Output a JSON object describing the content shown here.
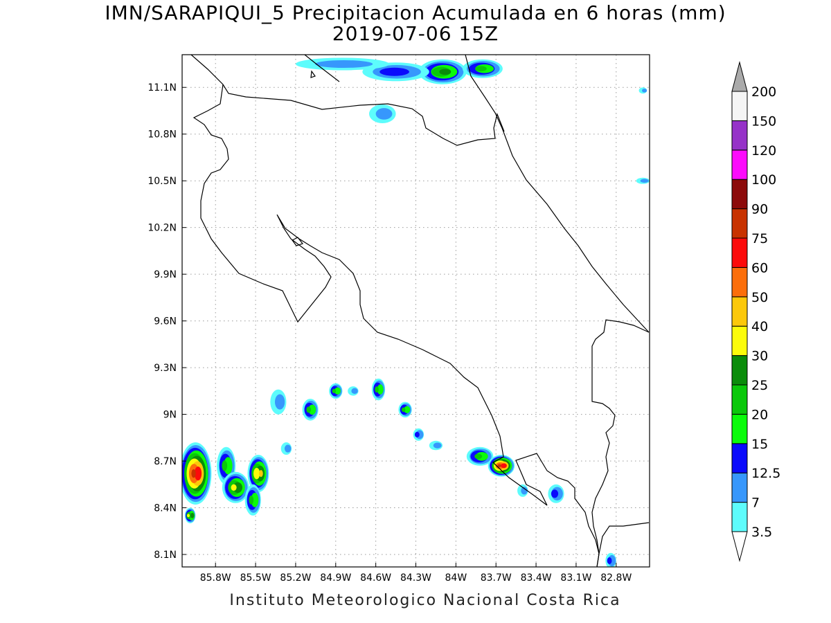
{
  "title": {
    "line1": "IMN/SARAPIQUI_5 Precipitacion Acumulada en 6 horas (mm)",
    "line2": "2019-07-06 15Z"
  },
  "credit": "Instituto Meteorologico Nacional Costa Rica",
  "map": {
    "lon_range": [
      -86.05,
      -82.55
    ],
    "lat_range": [
      8.02,
      11.31
    ],
    "lon_ticks": [
      {
        "value": -85.8,
        "label": "85.8W"
      },
      {
        "value": -85.5,
        "label": "85.5W"
      },
      {
        "value": -85.2,
        "label": "85.2W"
      },
      {
        "value": -84.9,
        "label": "84.9W"
      },
      {
        "value": -84.6,
        "label": "84.6W"
      },
      {
        "value": -84.3,
        "label": "84.3W"
      },
      {
        "value": -84.0,
        "label": "84W"
      },
      {
        "value": -83.7,
        "label": "83.7W"
      },
      {
        "value": -83.4,
        "label": "83.4W"
      },
      {
        "value": -83.1,
        "label": "83.1W"
      },
      {
        "value": -82.8,
        "label": "82.8W"
      }
    ],
    "lat_ticks": [
      {
        "value": 8.1,
        "label": "8.1N"
      },
      {
        "value": 8.4,
        "label": "8.4N"
      },
      {
        "value": 8.7,
        "label": "8.7N"
      },
      {
        "value": 9.0,
        "label": "9N"
      },
      {
        "value": 9.3,
        "label": "9.3N"
      },
      {
        "value": 9.6,
        "label": "9.6N"
      },
      {
        "value": 9.9,
        "label": "9.9N"
      },
      {
        "value": 10.2,
        "label": "10.2N"
      },
      {
        "value": 10.5,
        "label": "10.5N"
      },
      {
        "value": 10.8,
        "label": "10.8N"
      },
      {
        "value": 11.1,
        "label": "11.1N"
      }
    ],
    "grid": true
  },
  "colorbar": {
    "labels": [
      "3.5",
      "7",
      "12.5",
      "15",
      "20",
      "25",
      "30",
      "40",
      "50",
      "60",
      "75",
      "90",
      "100",
      "120",
      "150",
      "200"
    ],
    "colors": [
      "#5dfcfc",
      "#3797fc",
      "#0a0afc",
      "#0afc0a",
      "#0ac80a",
      "#0a8c0a",
      "#fcfc0a",
      "#fcc80a",
      "#fc6e0a",
      "#fc0a0a",
      "#c83200",
      "#8c0a0a",
      "#fc0afc",
      "#9632c8",
      "#f5f5f5"
    ],
    "over_color": "#aaaaaa",
    "under_color": "#ffffff"
  },
  "precip_cells": [
    {
      "lon": -85.95,
      "lat": 8.62,
      "rx": 0.12,
      "ry": 0.2,
      "level": 10
    },
    {
      "lon": -85.72,
      "lat": 8.67,
      "rx": 0.07,
      "ry": 0.12,
      "level": 4
    },
    {
      "lon": -85.65,
      "lat": 8.53,
      "rx": 0.1,
      "ry": 0.1,
      "level": 6
    },
    {
      "lon": -85.48,
      "lat": 8.62,
      "rx": 0.08,
      "ry": 0.12,
      "level": 7
    },
    {
      "lon": -85.52,
      "lat": 8.45,
      "rx": 0.06,
      "ry": 0.1,
      "level": 4
    },
    {
      "lon": -85.99,
      "lat": 8.35,
      "rx": 0.04,
      "ry": 0.05,
      "level": 6
    },
    {
      "lon": -85.33,
      "lat": 9.08,
      "rx": 0.06,
      "ry": 0.08,
      "level": 1
    },
    {
      "lon": -85.27,
      "lat": 8.78,
      "rx": 0.04,
      "ry": 0.04,
      "level": 1
    },
    {
      "lon": -85.09,
      "lat": 9.03,
      "rx": 0.06,
      "ry": 0.07,
      "level": 4
    },
    {
      "lon": -84.9,
      "lat": 9.15,
      "rx": 0.05,
      "ry": 0.05,
      "level": 4
    },
    {
      "lon": -84.77,
      "lat": 9.15,
      "rx": 0.04,
      "ry": 0.03,
      "level": 1
    },
    {
      "lon": -84.58,
      "lat": 9.16,
      "rx": 0.05,
      "ry": 0.07,
      "level": 4
    },
    {
      "lon": -84.38,
      "lat": 9.03,
      "rx": 0.05,
      "ry": 0.05,
      "level": 4
    },
    {
      "lon": -84.28,
      "lat": 8.87,
      "rx": 0.04,
      "ry": 0.04,
      "level": 2
    },
    {
      "lon": -84.15,
      "lat": 8.8,
      "rx": 0.05,
      "ry": 0.03,
      "level": 1
    },
    {
      "lon": -83.82,
      "lat": 8.73,
      "rx": 0.1,
      "ry": 0.06,
      "level": 4
    },
    {
      "lon": -83.66,
      "lat": 8.67,
      "rx": 0.1,
      "ry": 0.07,
      "level": 10
    },
    {
      "lon": -83.5,
      "lat": 8.51,
      "rx": 0.04,
      "ry": 0.04,
      "level": 1
    },
    {
      "lon": -83.25,
      "lat": 8.49,
      "rx": 0.06,
      "ry": 0.06,
      "level": 2
    },
    {
      "lon": -82.84,
      "lat": 8.06,
      "rx": 0.04,
      "ry": 0.05,
      "level": 2
    },
    {
      "lon": -84.1,
      "lat": 11.2,
      "rx": 0.18,
      "ry": 0.08,
      "level": 5
    },
    {
      "lon": -83.8,
      "lat": 11.22,
      "rx": 0.15,
      "ry": 0.06,
      "level": 4
    },
    {
      "lon": -84.45,
      "lat": 11.2,
      "rx": 0.25,
      "ry": 0.06,
      "level": 2
    },
    {
      "lon": -84.85,
      "lat": 11.25,
      "rx": 0.35,
      "ry": 0.04,
      "level": 1
    },
    {
      "lon": -84.55,
      "lat": 10.93,
      "rx": 0.1,
      "ry": 0.06,
      "level": 1
    },
    {
      "lon": -82.6,
      "lat": 10.5,
      "rx": 0.05,
      "ry": 0.02,
      "level": 1
    },
    {
      "lon": -82.6,
      "lat": 11.08,
      "rx": 0.03,
      "ry": 0.02,
      "level": 1
    }
  ]
}
